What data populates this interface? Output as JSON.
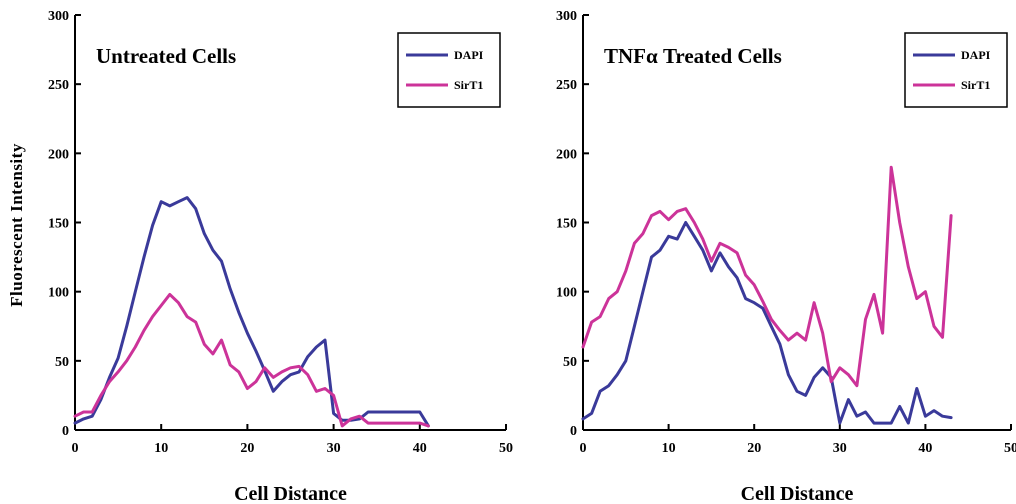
{
  "shared": {
    "ylabel": "Fluorescent Intensity"
  },
  "chart_data": [
    {
      "type": "line",
      "title": "Untreated Cells",
      "xlabel": "Cell Distance",
      "ylabel": "Fluorescent Intensity",
      "xlim": [
        0,
        50
      ],
      "ylim": [
        0,
        300
      ],
      "x_ticks": [
        "0",
        "10",
        "20",
        "30",
        "40",
        "50"
      ],
      "y_ticks": [
        "0",
        "50",
        "100",
        "150",
        "200",
        "250",
        "300"
      ],
      "grid": false,
      "legend_position": "top-right",
      "series": [
        {
          "name": "DAPI",
          "color": "#3a3a9a",
          "x": [
            0,
            1,
            2,
            3,
            4,
            5,
            6,
            7,
            8,
            9,
            10,
            11,
            12,
            13,
            14,
            15,
            16,
            17,
            18,
            19,
            20,
            21,
            22,
            23,
            24,
            25,
            26,
            27,
            28,
            29,
            30,
            31,
            32,
            33,
            34,
            35,
            36,
            37,
            38,
            39,
            40,
            41
          ],
          "y": [
            5,
            8,
            10,
            22,
            38,
            52,
            75,
            100,
            125,
            148,
            165,
            162,
            165,
            168,
            160,
            142,
            130,
            122,
            102,
            85,
            70,
            57,
            43,
            28,
            35,
            40,
            42,
            53,
            60,
            65,
            12,
            7,
            7,
            8,
            13,
            13,
            13,
            13,
            13,
            13,
            13,
            3
          ]
        },
        {
          "name": "SirT1",
          "color": "#cc3399",
          "x": [
            0,
            1,
            2,
            3,
            4,
            5,
            6,
            7,
            8,
            9,
            10,
            11,
            12,
            13,
            14,
            15,
            16,
            17,
            18,
            19,
            20,
            21,
            22,
            23,
            24,
            25,
            26,
            27,
            28,
            29,
            30,
            31,
            32,
            33,
            34,
            35,
            36,
            37,
            38,
            39,
            40,
            41
          ],
          "y": [
            10,
            13,
            13,
            25,
            35,
            42,
            50,
            60,
            72,
            82,
            90,
            98,
            92,
            82,
            78,
            62,
            55,
            65,
            47,
            42,
            30,
            35,
            45,
            38,
            42,
            45,
            46,
            40,
            28,
            30,
            25,
            3,
            8,
            10,
            5,
            5,
            5,
            5,
            5,
            5,
            5,
            3
          ]
        }
      ]
    },
    {
      "type": "line",
      "title": "TNFα   Treated Cells",
      "xlabel": "Cell Distance",
      "ylabel": "",
      "xlim": [
        0,
        50
      ],
      "ylim": [
        0,
        300
      ],
      "x_ticks": [
        "0",
        "10",
        "20",
        "30",
        "40",
        "50"
      ],
      "y_ticks": [
        "0",
        "50",
        "100",
        "150",
        "200",
        "250",
        "300"
      ],
      "grid": false,
      "legend_position": "top-right",
      "series": [
        {
          "name": "DAPI",
          "color": "#3a3a9a",
          "x": [
            0,
            1,
            2,
            3,
            4,
            5,
            6,
            7,
            8,
            9,
            10,
            11,
            12,
            13,
            14,
            15,
            16,
            17,
            18,
            19,
            20,
            21,
            22,
            23,
            24,
            25,
            26,
            27,
            28,
            29,
            30,
            31,
            32,
            33,
            34,
            35,
            36,
            37,
            38,
            39,
            40,
            41,
            42,
            43
          ],
          "y": [
            8,
            12,
            28,
            32,
            40,
            50,
            75,
            100,
            125,
            130,
            140,
            138,
            150,
            140,
            130,
            115,
            128,
            118,
            110,
            95,
            92,
            88,
            75,
            62,
            40,
            28,
            25,
            38,
            45,
            38,
            5,
            22,
            10,
            13,
            5,
            5,
            5,
            17,
            5,
            30,
            10,
            14,
            10,
            9
          ]
        },
        {
          "name": "SirT1",
          "color": "#cc3399",
          "x": [
            0,
            1,
            2,
            3,
            4,
            5,
            6,
            7,
            8,
            9,
            10,
            11,
            12,
            13,
            14,
            15,
            16,
            17,
            18,
            19,
            20,
            21,
            22,
            23,
            24,
            25,
            26,
            27,
            28,
            29,
            30,
            31,
            32,
            33,
            34,
            35,
            36,
            37,
            38,
            39,
            40,
            41,
            42,
            43
          ],
          "y": [
            60,
            78,
            82,
            95,
            100,
            115,
            135,
            142,
            155,
            158,
            152,
            158,
            160,
            150,
            138,
            122,
            135,
            132,
            128,
            112,
            105,
            93,
            80,
            72,
            65,
            70,
            65,
            92,
            70,
            35,
            45,
            40,
            32,
            80,
            98,
            70,
            190,
            150,
            118,
            95,
            100,
            75,
            67,
            155
          ]
        }
      ]
    }
  ]
}
